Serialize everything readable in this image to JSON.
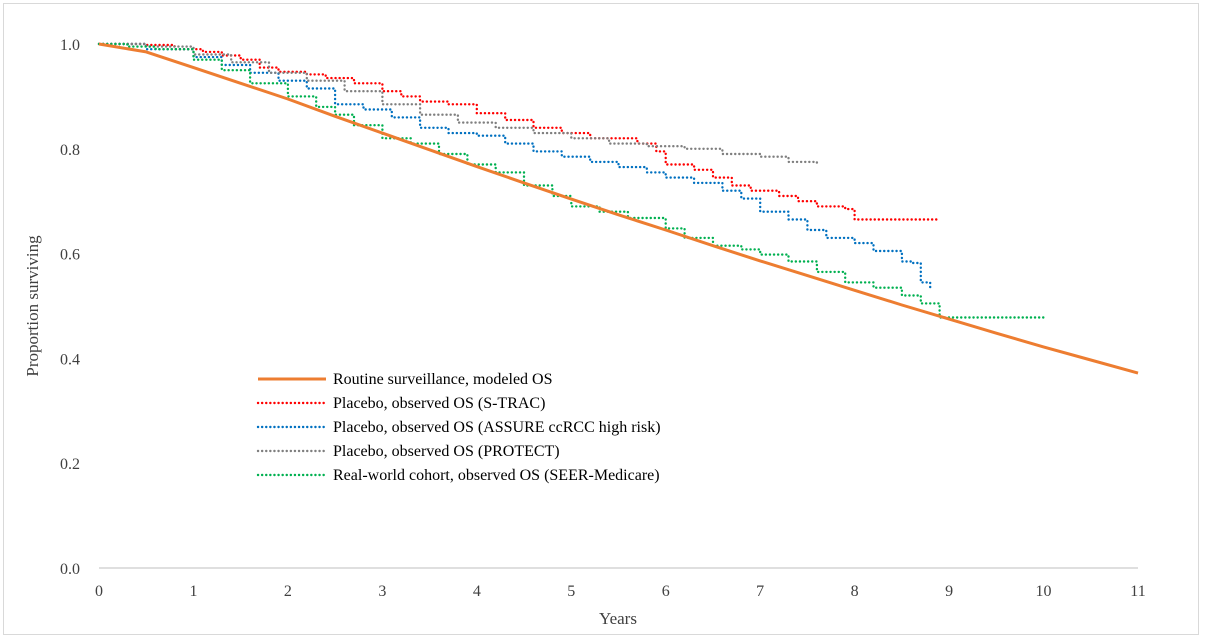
{
  "chart_data": {
    "type": "line",
    "title": "",
    "xlabel": "Years",
    "ylabel": "Proportion surviving",
    "xlim": [
      0,
      11
    ],
    "ylim": [
      0,
      1.0
    ],
    "x_ticks": [
      "0",
      "1",
      "2",
      "3",
      "4",
      "5",
      "6",
      "7",
      "8",
      "9",
      "10",
      "11"
    ],
    "y_ticks": [
      "0.0",
      "0.2",
      "0.4",
      "0.6",
      "0.8",
      "1.0"
    ],
    "grid": false,
    "legend_position": "bottom-left",
    "series": [
      {
        "name": "Routine surveillance, modeled OS",
        "color": "#ed7d31",
        "style": "solid",
        "points": [
          [
            0,
            1.0
          ],
          [
            0.5,
            0.985
          ],
          [
            1,
            0.955
          ],
          [
            1.5,
            0.925
          ],
          [
            2,
            0.895
          ],
          [
            2.5,
            0.862
          ],
          [
            3,
            0.83
          ],
          [
            3.5,
            0.798
          ],
          [
            4,
            0.766
          ],
          [
            4.5,
            0.735
          ],
          [
            5,
            0.704
          ],
          [
            5.5,
            0.674
          ],
          [
            6,
            0.645
          ],
          [
            6.5,
            0.615
          ],
          [
            7,
            0.586
          ],
          [
            7.5,
            0.558
          ],
          [
            8,
            0.53
          ],
          [
            8.5,
            0.502
          ],
          [
            9,
            0.475
          ],
          [
            9.5,
            0.448
          ],
          [
            10,
            0.422
          ],
          [
            10.5,
            0.397
          ],
          [
            11,
            0.372
          ]
        ]
      },
      {
        "name": "Placebo, observed OS (S-TRAC)",
        "color": "#ff0000",
        "style": "dotted",
        "points": [
          [
            0,
            1.0
          ],
          [
            0.5,
            0.998
          ],
          [
            0.8,
            0.99
          ],
          [
            1.1,
            0.985
          ],
          [
            1.3,
            0.978
          ],
          [
            1.5,
            0.97
          ],
          [
            1.7,
            0.955
          ],
          [
            1.9,
            0.947
          ],
          [
            2.2,
            0.942
          ],
          [
            2.4,
            0.935
          ],
          [
            2.7,
            0.925
          ],
          [
            3,
            0.91
          ],
          [
            3.2,
            0.9
          ],
          [
            3.4,
            0.89
          ],
          [
            3.7,
            0.885
          ],
          [
            4,
            0.868
          ],
          [
            4.3,
            0.855
          ],
          [
            4.6,
            0.84
          ],
          [
            4.9,
            0.83
          ],
          [
            5.2,
            0.82
          ],
          [
            5.5,
            0.82
          ],
          [
            5.7,
            0.81
          ],
          [
            5.9,
            0.795
          ],
          [
            6,
            0.77
          ],
          [
            6.3,
            0.76
          ],
          [
            6.5,
            0.745
          ],
          [
            6.7,
            0.73
          ],
          [
            6.9,
            0.72
          ],
          [
            7.2,
            0.71
          ],
          [
            7.4,
            0.7
          ],
          [
            7.6,
            0.69
          ],
          [
            7.9,
            0.685
          ],
          [
            8,
            0.665
          ],
          [
            8.3,
            0.665
          ],
          [
            8.9,
            0.665
          ]
        ]
      },
      {
        "name": "Placebo, observed OS (ASSURE ccRCC high risk)",
        "color": "#0070c0",
        "style": "dotted",
        "points": [
          [
            0,
            1.0
          ],
          [
            0.5,
            0.99
          ],
          [
            1,
            0.975
          ],
          [
            1.3,
            0.96
          ],
          [
            1.6,
            0.945
          ],
          [
            1.9,
            0.93
          ],
          [
            2.2,
            0.915
          ],
          [
            2.5,
            0.885
          ],
          [
            2.8,
            0.875
          ],
          [
            3.1,
            0.86
          ],
          [
            3.4,
            0.84
          ],
          [
            3.7,
            0.83
          ],
          [
            4,
            0.825
          ],
          [
            4.3,
            0.81
          ],
          [
            4.6,
            0.795
          ],
          [
            4.9,
            0.785
          ],
          [
            5.2,
            0.775
          ],
          [
            5.5,
            0.765
          ],
          [
            5.8,
            0.755
          ],
          [
            6,
            0.745
          ],
          [
            6.3,
            0.735
          ],
          [
            6.6,
            0.72
          ],
          [
            6.8,
            0.705
          ],
          [
            7,
            0.68
          ],
          [
            7.3,
            0.665
          ],
          [
            7.5,
            0.645
          ],
          [
            7.7,
            0.63
          ],
          [
            8,
            0.62
          ],
          [
            8.2,
            0.605
          ],
          [
            8.5,
            0.585
          ],
          [
            8.6,
            0.582
          ],
          [
            8.7,
            0.545
          ],
          [
            8.8,
            0.53
          ]
        ]
      },
      {
        "name": "Placebo, observed OS (PROTECT)",
        "color": "#7f7f7f",
        "style": "dotted",
        "points": [
          [
            0,
            1.0
          ],
          [
            0.5,
            0.995
          ],
          [
            1,
            0.98
          ],
          [
            1.4,
            0.965
          ],
          [
            1.8,
            0.945
          ],
          [
            2.2,
            0.93
          ],
          [
            2.6,
            0.91
          ],
          [
            3,
            0.885
          ],
          [
            3.4,
            0.865
          ],
          [
            3.8,
            0.85
          ],
          [
            4.2,
            0.84
          ],
          [
            4.6,
            0.83
          ],
          [
            5,
            0.82
          ],
          [
            5.4,
            0.81
          ],
          [
            5.8,
            0.805
          ],
          [
            6.2,
            0.8
          ],
          [
            6.6,
            0.79
          ],
          [
            7,
            0.785
          ],
          [
            7.3,
            0.775
          ],
          [
            7.6,
            0.768
          ]
        ]
      },
      {
        "name": "Real-world cohort, observed OS (SEER-Medicare)",
        "color": "#00b050",
        "style": "dotted",
        "points": [
          [
            0,
            1.0
          ],
          [
            0.3,
            0.995
          ],
          [
            0.6,
            0.99
          ],
          [
            1,
            0.97
          ],
          [
            1.3,
            0.95
          ],
          [
            1.6,
            0.925
          ],
          [
            2,
            0.9
          ],
          [
            2.3,
            0.88
          ],
          [
            2.5,
            0.865
          ],
          [
            2.7,
            0.845
          ],
          [
            3,
            0.82
          ],
          [
            3.3,
            0.81
          ],
          [
            3.6,
            0.79
          ],
          [
            3.9,
            0.77
          ],
          [
            4.2,
            0.755
          ],
          [
            4.5,
            0.73
          ],
          [
            4.8,
            0.71
          ],
          [
            5,
            0.69
          ],
          [
            5.3,
            0.68
          ],
          [
            5.6,
            0.668
          ],
          [
            6,
            0.648
          ],
          [
            6.2,
            0.63
          ],
          [
            6.5,
            0.615
          ],
          [
            6.8,
            0.608
          ],
          [
            7,
            0.598
          ],
          [
            7.3,
            0.585
          ],
          [
            7.6,
            0.565
          ],
          [
            7.9,
            0.545
          ],
          [
            8.2,
            0.535
          ],
          [
            8.5,
            0.52
          ],
          [
            8.7,
            0.505
          ],
          [
            8.9,
            0.478
          ],
          [
            9.4,
            0.478
          ],
          [
            10,
            0.478
          ]
        ]
      }
    ]
  }
}
